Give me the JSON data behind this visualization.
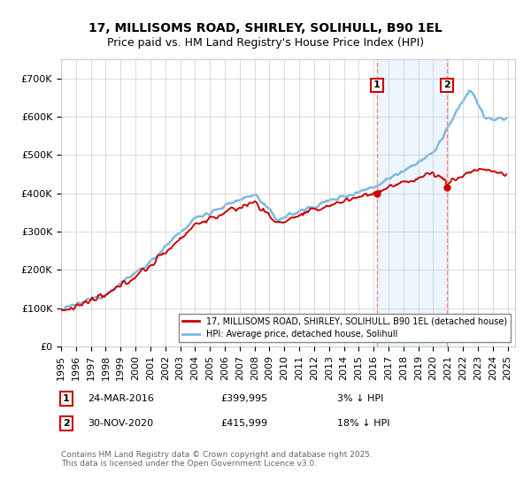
{
  "title": "17, MILLISOMS ROAD, SHIRLEY, SOLIHULL, B90 1EL",
  "subtitle": "Price paid vs. HM Land Registry's House Price Index (HPI)",
  "ylim": [
    0,
    750000
  ],
  "yticks": [
    0,
    100000,
    200000,
    300000,
    400000,
    500000,
    600000,
    700000
  ],
  "ytick_labels": [
    "£0",
    "£100K",
    "£200K",
    "£300K",
    "£400K",
    "£500K",
    "£600K",
    "£700K"
  ],
  "hpi_color": "#7cb8e0",
  "hpi_fill_color": "#ddeeff",
  "price_color": "#cc0000",
  "vline_color": "#ff8888",
  "annotation_box_color": "#cc0000",
  "legend_label_price": "17, MILLISOMS ROAD, SHIRLEY, SOLIHULL, B90 1EL (detached house)",
  "legend_label_hpi": "HPI: Average price, detached house, Solihull",
  "annotation_1_label": "1",
  "annotation_1_date": "24-MAR-2016",
  "annotation_1_price": "£399,995",
  "annotation_1_pct": "3% ↓ HPI",
  "annotation_2_label": "2",
  "annotation_2_date": "30-NOV-2020",
  "annotation_2_price": "£415,999",
  "annotation_2_pct": "18% ↓ HPI",
  "footer": "Contains HM Land Registry data © Crown copyright and database right 2025.\nThis data is licensed under the Open Government Licence v3.0.",
  "background_color": "#ffffff",
  "grid_color": "#cccccc",
  "title_fontsize": 10,
  "subtitle_fontsize": 9,
  "tick_fontsize": 8,
  "sale1_year": 2016.22,
  "sale1_price": 399995,
  "sale2_year": 2020.92,
  "sale2_price": 415999,
  "xlim_start": 1995,
  "xlim_end": 2025.5
}
